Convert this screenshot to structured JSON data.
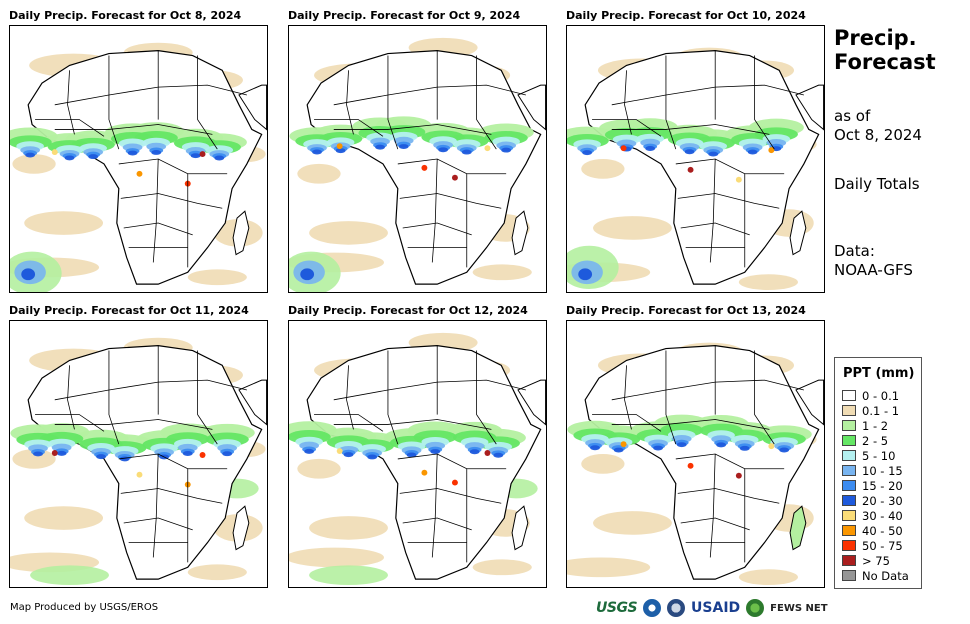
{
  "panels": [
    {
      "title": "Daily Precip. Forecast for Oct 8, 2024"
    },
    {
      "title": "Daily Precip. Forecast for Oct 9, 2024"
    },
    {
      "title": "Daily Precip. Forecast for Oct 10, 2024"
    },
    {
      "title": "Daily Precip. Forecast for Oct 11, 2024"
    },
    {
      "title": "Daily Precip. Forecast for Oct 12, 2024"
    },
    {
      "title": "Daily Precip. Forecast for Oct 13, 2024"
    }
  ],
  "side": {
    "title_line1": "Precip.",
    "title_line2": "Forecast",
    "asof_line1": "as of",
    "asof_line2": "Oct 8, 2024",
    "totals": "Daily Totals",
    "data_line1": "Data:",
    "data_line2": "NOAA-GFS"
  },
  "legend": {
    "title": "PPT (mm)",
    "items": [
      {
        "label": "0 - 0.1",
        "color": "#ffffff"
      },
      {
        "label": "0.1 - 1",
        "color": "#f0dcb4"
      },
      {
        "label": "1 - 2",
        "color": "#b4f0a0"
      },
      {
        "label": "2 - 5",
        "color": "#64e664"
      },
      {
        "label": "5 - 10",
        "color": "#b4f0f0"
      },
      {
        "label": "10 - 15",
        "color": "#78b4f0"
      },
      {
        "label": "15 - 20",
        "color": "#3c8cf0"
      },
      {
        "label": "20 - 30",
        "color": "#1e5adc"
      },
      {
        "label": "30 - 40",
        "color": "#fadc78"
      },
      {
        "label": "40 - 50",
        "color": "#fa9600"
      },
      {
        "label": "50 - 75",
        "color": "#fa3200"
      },
      {
        "label": "> 75",
        "color": "#aa1e1e"
      },
      {
        "label": "No Data",
        "color": "#969696"
      }
    ]
  },
  "footer": {
    "text": "Map Produced by USGS/EROS"
  },
  "logos": {
    "usgs": "USGS",
    "usaid": "USAID",
    "fews": "FEWS NET"
  }
}
